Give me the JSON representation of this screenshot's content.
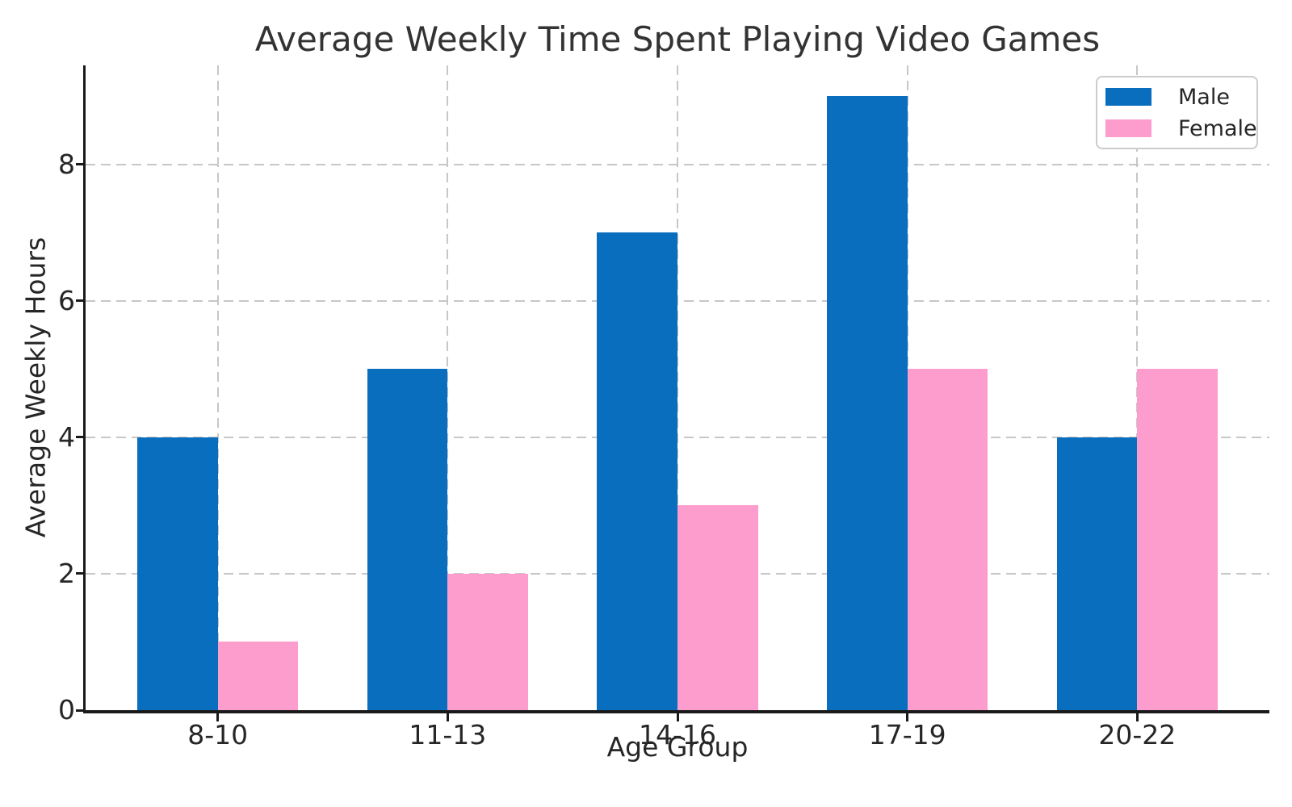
{
  "chart_data": {
    "type": "bar",
    "title": "Average Weekly Time Spent Playing Video Games",
    "xlabel": "Age Group",
    "ylabel": "Average Weekly Hours",
    "categories": [
      "8-10",
      "11-13",
      "14-16",
      "17-19",
      "20-22"
    ],
    "series": [
      {
        "name": "Male",
        "color": "#0a6ebe",
        "values": [
          4,
          5,
          7,
          9,
          4
        ]
      },
      {
        "name": "Female",
        "color": "#fc9dce",
        "values": [
          1,
          2,
          3,
          5,
          5
        ]
      }
    ],
    "ylim": [
      0,
      9.45
    ],
    "yticks": [
      0,
      2,
      4,
      6,
      8
    ],
    "grid": true,
    "grid_style": "dashed",
    "legend_position": "upper right"
  },
  "style": {
    "grid_color": "#c7c7c7",
    "spine_color": "#1a1a1a",
    "text_color": "#262626",
    "title_color": "#333333",
    "background": "#ffffff"
  }
}
